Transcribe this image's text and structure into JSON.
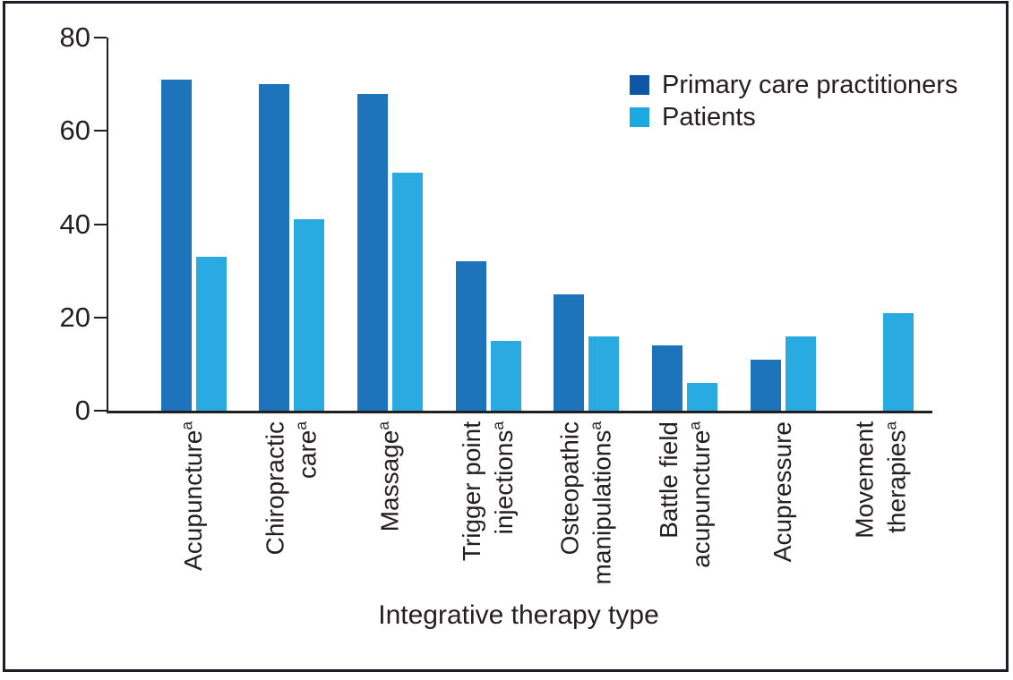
{
  "figure": {
    "background": "#ffffff",
    "border_color": "#1c1d27",
    "axis_color": "#231f20",
    "text_color": "#231f20"
  },
  "legend": {
    "position": "top-right",
    "items": [
      {
        "label": "Primary care practitioners",
        "swatch_color": "#0d57a6"
      },
      {
        "label": "Patients",
        "swatch_color": "#1ba9e0"
      }
    ]
  },
  "chart_data": {
    "type": "bar",
    "title": "",
    "xlabel": "Integrative therapy type",
    "ylabel": "",
    "ylim": [
      0,
      80
    ],
    "yticks": [
      0,
      20,
      40,
      60,
      80
    ],
    "grid": false,
    "legend_position": "top-right",
    "categories": [
      {
        "label": "Acupuncture",
        "lines": [
          "Acupuncture"
        ],
        "superscript": "a"
      },
      {
        "label": "Chiropractic care",
        "lines": [
          "Chiropractic",
          "care"
        ],
        "superscript": "a"
      },
      {
        "label": "Massage",
        "lines": [
          "Massage"
        ],
        "superscript": "a"
      },
      {
        "label": "Trigger point injections",
        "lines": [
          "Trigger point",
          "injections"
        ],
        "superscript": "a"
      },
      {
        "label": "Osteopathic manipulations",
        "lines": [
          "Osteopathic",
          "manipulations"
        ],
        "superscript": "a"
      },
      {
        "label": "Battle field acupuncture",
        "lines": [
          "Battle field",
          "acupuncture"
        ],
        "superscript": "a"
      },
      {
        "label": "Acupressure",
        "lines": [
          "Acupressure"
        ],
        "superscript": ""
      },
      {
        "label": "Movement therapies",
        "lines": [
          "Movement",
          "therapies"
        ],
        "superscript": "a"
      }
    ],
    "series": [
      {
        "name": "Primary care practitioners",
        "color": "#1d74ba",
        "values": [
          71,
          70,
          68,
          32,
          25,
          14,
          11,
          null
        ]
      },
      {
        "name": "Patients",
        "color": "#29abe2",
        "values": [
          33,
          41,
          51,
          15,
          16,
          6,
          16,
          21
        ]
      }
    ]
  }
}
